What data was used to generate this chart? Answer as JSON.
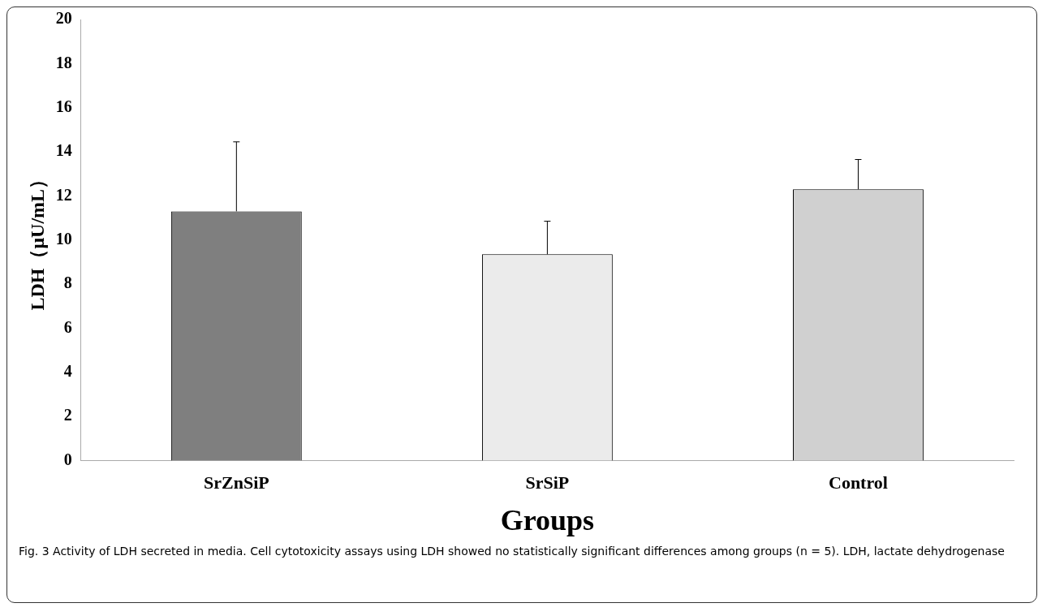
{
  "chart_data": {
    "type": "bar",
    "xlabel": "Groups",
    "ylabel": "LDH（μU/mL）",
    "categories": [
      "SrZnSiP",
      "SrSiP",
      "Control"
    ],
    "values": [
      11.3,
      9.35,
      12.3
    ],
    "colors": [
      "#7f7f7f",
      "#ebebeb",
      "#d0d0d0"
    ],
    "errors": [
      [
        11.3,
        14.45
      ],
      [
        9.35,
        10.85
      ],
      [
        12.3,
        13.65
      ]
    ],
    "ylim": [
      0,
      20
    ],
    "yticks": [
      0,
      2,
      4,
      6,
      8,
      10,
      12,
      14,
      16,
      18,
      20
    ],
    "grid": false,
    "annotations": [
      "Fig. 3 Activity of LDH secreted in media. Cell cytotoxicity assays using LDH showed no statistically significant differences among groups (n = 5). LDH, lactate dehydrogenase"
    ]
  }
}
